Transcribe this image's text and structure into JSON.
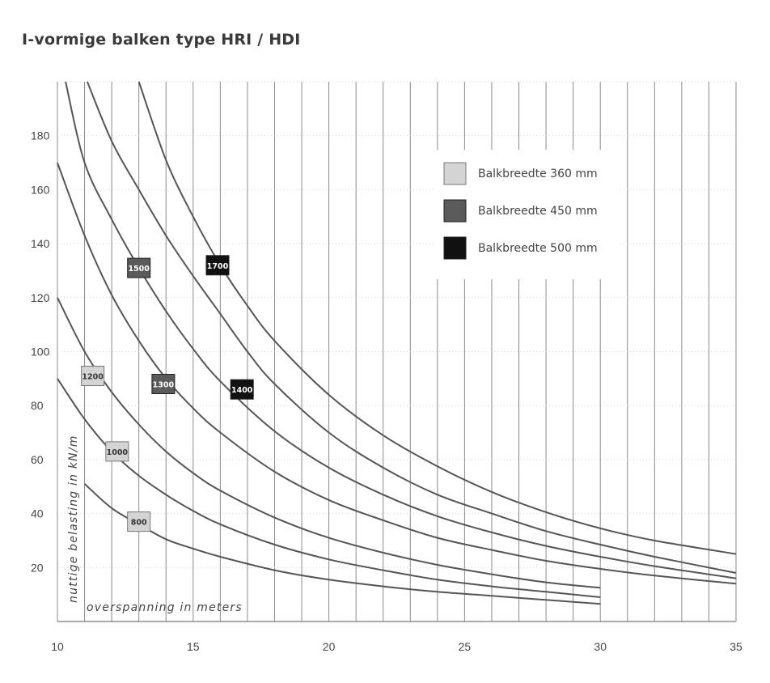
{
  "page": {
    "title": "I-vormige balken type HRI / HDI"
  },
  "chart_data": {
    "type": "line",
    "title": "I-vormige balken type HRI / HDI",
    "xlabel": "overspanning in meters",
    "ylabel": "nuttige belasting in kN/m",
    "xlim": [
      10,
      35
    ],
    "ylim": [
      0,
      200
    ],
    "x_ticks": [
      10,
      15,
      20,
      25,
      30,
      35
    ],
    "y_ticks": [
      20,
      40,
      60,
      80,
      100,
      120,
      140,
      160,
      180
    ],
    "grid": true,
    "legend_position": "top-right",
    "legend": [
      {
        "label": "Balkbreedte 360 mm",
        "color": "#d4d4d4"
      },
      {
        "label": "Balkbreedte 450 mm",
        "color": "#5a5a5a"
      },
      {
        "label": "Balkbreedte 500 mm",
        "color": "#111111"
      }
    ],
    "series": [
      {
        "name": "800",
        "group": "Balkbreedte 360 mm",
        "label_at": [
          13,
          37
        ],
        "x": [
          11,
          12,
          13,
          14,
          15,
          16,
          18,
          20,
          22,
          24,
          26,
          28,
          30
        ],
        "y": [
          51,
          42,
          36,
          30.5,
          27,
          24,
          19,
          15.5,
          13,
          11,
          9.5,
          8,
          6.5
        ]
      },
      {
        "name": "1000",
        "group": "Balkbreedte 360 mm",
        "label_at": [
          12.2,
          63
        ],
        "x": [
          10,
          11,
          12,
          13,
          14,
          15,
          16,
          18,
          20,
          22,
          24,
          26,
          28,
          30
        ],
        "y": [
          90,
          75,
          63,
          54,
          47,
          41,
          36,
          28.5,
          23,
          19,
          15.5,
          13,
          11,
          9
        ]
      },
      {
        "name": "1200",
        "group": "Balkbreedte 360 mm",
        "label_at": [
          11.3,
          91
        ],
        "x": [
          10,
          11,
          12,
          13,
          14,
          15,
          16,
          18,
          20,
          22,
          24,
          26,
          28,
          30
        ],
        "y": [
          120,
          100,
          85,
          73,
          63,
          55,
          48.5,
          38.5,
          31,
          25.5,
          21,
          17.5,
          14.5,
          12.5
        ]
      },
      {
        "name": "1300",
        "group": "Balkbreedte 450 mm",
        "label_at": [
          13.9,
          88
        ],
        "x": [
          10,
          11,
          12,
          13,
          14,
          15,
          16,
          18,
          20,
          22,
          24,
          26,
          28,
          30,
          32,
          35
        ],
        "y": [
          170,
          143,
          121,
          104,
          90,
          79,
          70,
          55.5,
          45,
          37.5,
          31,
          26.5,
          22.5,
          19.5,
          17,
          14
        ]
      },
      {
        "name": "1500",
        "group": "Balkbreedte 450 mm",
        "label_at": [
          13,
          131
        ],
        "x": [
          10.3,
          11,
          12,
          13,
          14,
          15,
          16,
          18,
          20,
          22,
          24,
          26,
          28,
          30,
          32,
          35
        ],
        "y": [
          200,
          170,
          149,
          131,
          115,
          101,
          89,
          70.5,
          57,
          47,
          39,
          33,
          28,
          24,
          20.5,
          16
        ]
      },
      {
        "name": "1400",
        "group": "Balkbreedte 500 mm",
        "label_at": [
          16.8,
          86
        ],
        "x": [
          11.1,
          12,
          13,
          14,
          15,
          16,
          17,
          18,
          20,
          22,
          24,
          26,
          28,
          30,
          32,
          35
        ],
        "y": [
          200,
          178,
          160,
          143,
          128,
          114,
          100,
          88,
          70,
          57,
          47,
          40,
          33.5,
          28.5,
          24,
          18
        ]
      },
      {
        "name": "1700",
        "group": "Balkbreedte 500 mm",
        "label_at": [
          15.9,
          132
        ],
        "x": [
          13,
          14,
          15,
          16,
          17,
          18,
          20,
          22,
          24,
          26,
          28,
          30,
          32,
          35
        ],
        "y": [
          200,
          171,
          150,
          132,
          117,
          104,
          84,
          69,
          57.5,
          48,
          40.5,
          34.5,
          30,
          25
        ]
      }
    ]
  }
}
